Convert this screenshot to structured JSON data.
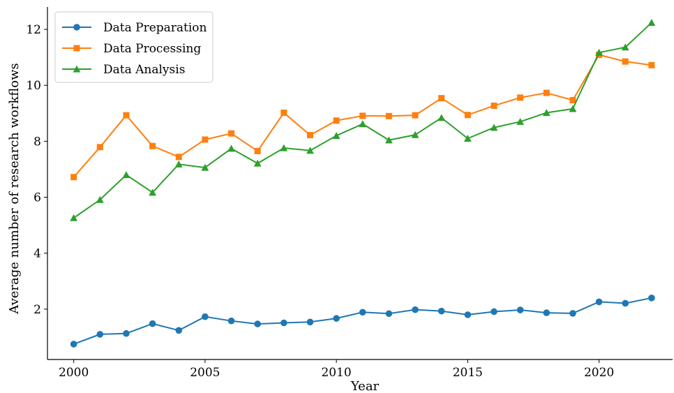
{
  "chart_data": {
    "type": "line",
    "xlabel": "Year",
    "ylabel": "Average number of research workflows",
    "xlim": [
      1999,
      2022.8
    ],
    "ylim": [
      0.2,
      12.8
    ],
    "xticks": [
      2000,
      2005,
      2010,
      2015,
      2020
    ],
    "yticks": [
      2,
      4,
      6,
      8,
      10,
      12
    ],
    "grid": false,
    "legend_position": "top-left",
    "x": [
      2000,
      2001,
      2002,
      2003,
      2004,
      2005,
      2006,
      2007,
      2008,
      2009,
      2010,
      2011,
      2012,
      2013,
      2014,
      2015,
      2016,
      2017,
      2018,
      2019,
      2020,
      2021,
      2022
    ],
    "series": [
      {
        "name": "Data Preparation",
        "color": "#1f77b4",
        "marker": "circle",
        "values": [
          0.75,
          1.1,
          1.13,
          1.48,
          1.24,
          1.73,
          1.58,
          1.47,
          1.51,
          1.54,
          1.67,
          1.89,
          1.84,
          1.98,
          1.93,
          1.8,
          1.91,
          1.97,
          1.87,
          1.85,
          2.26,
          2.21,
          2.4
        ]
      },
      {
        "name": "Data Processing",
        "color": "#ff7f0e",
        "marker": "square",
        "values": [
          6.72,
          7.79,
          8.93,
          7.83,
          7.44,
          8.06,
          8.28,
          7.65,
          9.02,
          8.22,
          8.74,
          8.91,
          8.9,
          8.93,
          9.54,
          8.94,
          9.27,
          9.56,
          9.73,
          9.47,
          11.09,
          10.85,
          10.72
        ]
      },
      {
        "name": "Data Analysis",
        "color": "#2ca02c",
        "marker": "triangle",
        "values": [
          5.26,
          5.91,
          6.8,
          6.17,
          7.18,
          7.06,
          7.74,
          7.21,
          7.76,
          7.67,
          8.2,
          8.62,
          8.04,
          8.23,
          8.84,
          8.1,
          8.49,
          8.7,
          9.02,
          9.16,
          11.17,
          11.36,
          12.24
        ]
      }
    ]
  }
}
